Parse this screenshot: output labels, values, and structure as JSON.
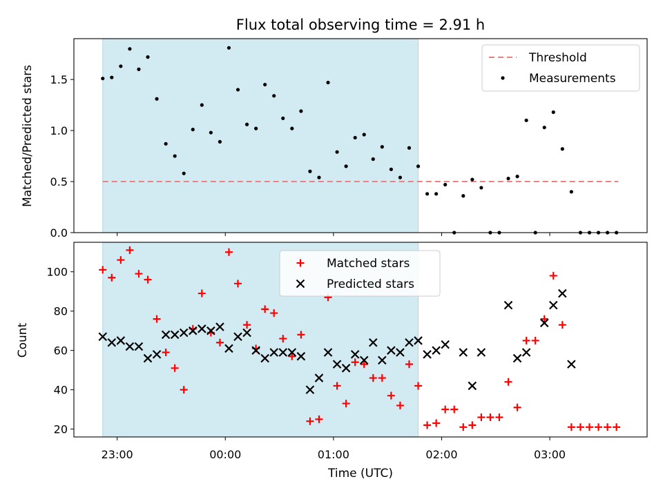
{
  "chart_data": [
    {
      "type": "scatter",
      "title": "Flux total observing time = 2.91 h",
      "ylabel": "Matched/Predicted stars",
      "xlim": [
        "22:36",
        "03:54"
      ],
      "ylim": [
        0,
        1.9
      ],
      "y_ticks": [
        "0.0",
        "0.5",
        "1.0",
        "1.5"
      ],
      "shaded_region": {
        "from": "22:52",
        "to": "01:47",
        "color": "#add8e6"
      },
      "threshold": {
        "name": "Threshold",
        "value": 0.5,
        "from": "22:52",
        "to": "03:38",
        "color": "#f08080"
      },
      "legend_position": "upper right",
      "series": [
        {
          "name": "Measurements",
          "marker": "dot",
          "color": "#000000",
          "points": [
            [
              "22:52",
              1.51
            ],
            [
              "22:57",
              1.52
            ],
            [
              "23:02",
              1.63
            ],
            [
              "23:07",
              1.8
            ],
            [
              "23:12",
              1.6
            ],
            [
              "23:17",
              1.72
            ],
            [
              "23:22",
              1.31
            ],
            [
              "23:27",
              0.87
            ],
            [
              "23:32",
              0.75
            ],
            [
              "23:37",
              0.58
            ],
            [
              "23:42",
              1.01
            ],
            [
              "23:47",
              1.25
            ],
            [
              "23:52",
              0.98
            ],
            [
              "23:57",
              0.89
            ],
            [
              "00:02",
              1.81
            ],
            [
              "00:07",
              1.4
            ],
            [
              "00:12",
              1.06
            ],
            [
              "00:17",
              1.02
            ],
            [
              "00:22",
              1.45
            ],
            [
              "00:27",
              1.34
            ],
            [
              "00:32",
              1.12
            ],
            [
              "00:37",
              1.02
            ],
            [
              "00:42",
              1.19
            ],
            [
              "00:47",
              0.6
            ],
            [
              "00:52",
              0.54
            ],
            [
              "00:57",
              1.47
            ],
            [
              "01:02",
              0.79
            ],
            [
              "01:07",
              0.65
            ],
            [
              "01:12",
              0.93
            ],
            [
              "01:17",
              0.96
            ],
            [
              "01:22",
              0.72
            ],
            [
              "01:27",
              0.84
            ],
            [
              "01:32",
              0.62
            ],
            [
              "01:37",
              0.54
            ],
            [
              "01:42",
              0.83
            ],
            [
              "01:47",
              0.65
            ],
            [
              "01:52",
              0.38
            ],
            [
              "01:57",
              0.38
            ],
            [
              "02:02",
              0.47
            ],
            [
              "02:07",
              0.0
            ],
            [
              "02:12",
              0.36
            ],
            [
              "02:17",
              0.52
            ],
            [
              "02:22",
              0.44
            ],
            [
              "02:27",
              0.0
            ],
            [
              "02:32",
              0.0
            ],
            [
              "02:37",
              0.53
            ],
            [
              "02:42",
              0.55
            ],
            [
              "02:47",
              1.1
            ],
            [
              "02:52",
              0.0
            ],
            [
              "02:57",
              1.03
            ],
            [
              "03:02",
              1.18
            ],
            [
              "03:07",
              0.82
            ],
            [
              "03:12",
              0.4
            ],
            [
              "03:17",
              0.0
            ],
            [
              "03:22",
              0.0
            ],
            [
              "03:27",
              0.0
            ],
            [
              "03:32",
              0.0
            ],
            [
              "03:37",
              0.0
            ]
          ]
        }
      ]
    },
    {
      "type": "scatter",
      "xlabel": "Time (UTC)",
      "ylabel": "Count",
      "xlim": [
        "22:36",
        "03:54"
      ],
      "ylim": [
        16,
        115
      ],
      "x_ticks": [
        "23:00",
        "00:00",
        "01:00",
        "02:00",
        "03:00"
      ],
      "y_ticks": [
        "20",
        "40",
        "60",
        "80",
        "100"
      ],
      "shaded_region": {
        "from": "22:52",
        "to": "01:47",
        "color": "#add8e6"
      },
      "legend_position": "upper center",
      "series": [
        {
          "name": "Matched stars",
          "marker": "plus",
          "color": "#ff0000",
          "points": [
            [
              "22:52",
              101
            ],
            [
              "22:57",
              97
            ],
            [
              "23:02",
              106
            ],
            [
              "23:07",
              111
            ],
            [
              "23:12",
              99
            ],
            [
              "23:17",
              96
            ],
            [
              "23:22",
              76
            ],
            [
              "23:27",
              59
            ],
            [
              "23:32",
              51
            ],
            [
              "23:37",
              40
            ],
            [
              "23:42",
              71
            ],
            [
              "23:47",
              89
            ],
            [
              "23:52",
              69
            ],
            [
              "23:57",
              64
            ],
            [
              "00:02",
              110
            ],
            [
              "00:07",
              94
            ],
            [
              "00:12",
              73
            ],
            [
              "00:17",
              61
            ],
            [
              "00:22",
              81
            ],
            [
              "00:27",
              79
            ],
            [
              "00:32",
              66
            ],
            [
              "00:37",
              57
            ],
            [
              "00:42",
              68
            ],
            [
              "00:47",
              24
            ],
            [
              "00:52",
              25
            ],
            [
              "00:57",
              87
            ],
            [
              "01:02",
              42
            ],
            [
              "01:07",
              33
            ],
            [
              "01:12",
              54
            ],
            [
              "01:17",
              53
            ],
            [
              "01:22",
              46
            ],
            [
              "01:27",
              46
            ],
            [
              "01:32",
              37
            ],
            [
              "01:37",
              32
            ],
            [
              "01:42",
              53
            ],
            [
              "01:47",
              42
            ],
            [
              "01:52",
              22
            ],
            [
              "01:57",
              23
            ],
            [
              "02:02",
              30
            ],
            [
              "02:07",
              30
            ],
            [
              "02:12",
              21
            ],
            [
              "02:17",
              22
            ],
            [
              "02:22",
              26
            ],
            [
              "02:27",
              26
            ],
            [
              "02:32",
              26
            ],
            [
              "02:37",
              44
            ],
            [
              "02:42",
              31
            ],
            [
              "02:47",
              65
            ],
            [
              "02:52",
              65
            ],
            [
              "02:57",
              76
            ],
            [
              "03:02",
              98
            ],
            [
              "03:07",
              73
            ],
            [
              "03:12",
              21
            ],
            [
              "03:17",
              21
            ],
            [
              "03:22",
              21
            ],
            [
              "03:27",
              21
            ],
            [
              "03:32",
              21
            ],
            [
              "03:37",
              21
            ]
          ]
        },
        {
          "name": "Predicted stars",
          "marker": "x",
          "color": "#000000",
          "points": [
            [
              "22:52",
              67
            ],
            [
              "22:57",
              64
            ],
            [
              "23:02",
              65
            ],
            [
              "23:07",
              62
            ],
            [
              "23:12",
              62
            ],
            [
              "23:17",
              56
            ],
            [
              "23:22",
              58
            ],
            [
              "23:27",
              68
            ],
            [
              "23:32",
              68
            ],
            [
              "23:37",
              69
            ],
            [
              "23:42",
              70
            ],
            [
              "23:47",
              71
            ],
            [
              "23:52",
              70
            ],
            [
              "23:57",
              72
            ],
            [
              "00:02",
              61
            ],
            [
              "00:07",
              67
            ],
            [
              "00:12",
              69
            ],
            [
              "00:17",
              60
            ],
            [
              "00:22",
              56
            ],
            [
              "00:27",
              59
            ],
            [
              "00:32",
              59
            ],
            [
              "00:37",
              59
            ],
            [
              "00:42",
              57
            ],
            [
              "00:47",
              40
            ],
            [
              "00:52",
              46
            ],
            [
              "00:57",
              59
            ],
            [
              "01:02",
              53
            ],
            [
              "01:07",
              51
            ],
            [
              "01:12",
              58
            ],
            [
              "01:17",
              55
            ],
            [
              "01:22",
              64
            ],
            [
              "01:27",
              55
            ],
            [
              "01:32",
              60
            ],
            [
              "01:37",
              59
            ],
            [
              "01:42",
              64
            ],
            [
              "01:47",
              65
            ],
            [
              "01:52",
              58
            ],
            [
              "01:57",
              60
            ],
            [
              "02:02",
              63
            ],
            [
              "02:12",
              59
            ],
            [
              "02:17",
              42
            ],
            [
              "02:22",
              59
            ],
            [
              "02:37",
              83
            ],
            [
              "02:42",
              56
            ],
            [
              "02:47",
              59
            ],
            [
              "02:57",
              74
            ],
            [
              "03:02",
              83
            ],
            [
              "03:07",
              89
            ],
            [
              "03:12",
              53
            ]
          ]
        }
      ]
    }
  ]
}
